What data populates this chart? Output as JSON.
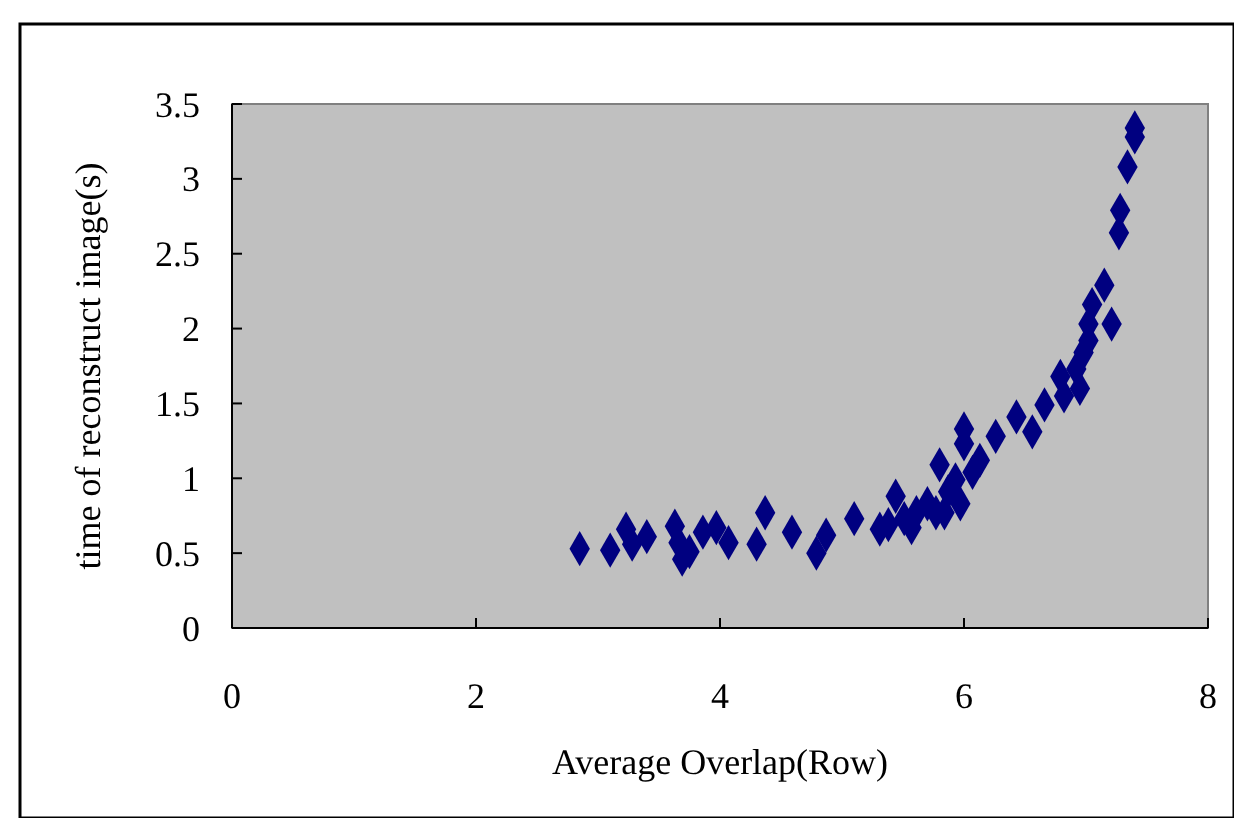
{
  "chart_data": {
    "type": "scatter",
    "xlabel": "Average Overlap(Row)",
    "ylabel": "time of reconstruct image(s)",
    "xlim": [
      0,
      8
    ],
    "xticks": [
      0,
      2,
      4,
      6,
      8
    ],
    "ylim": [
      0,
      3.5
    ],
    "yticks": [
      0,
      0.5,
      1,
      1.5,
      2,
      2.5,
      3,
      3.5
    ],
    "grid": false,
    "marker": "diamond",
    "series": [
      {
        "color": "#000080",
        "x": [
          2.85,
          3.1,
          3.23,
          3.28,
          3.4,
          3.63,
          3.66,
          3.69,
          3.75,
          3.86,
          3.97,
          4.07,
          4.3,
          4.37,
          4.59,
          4.79,
          4.87,
          5.1,
          5.31,
          5.38,
          5.44,
          5.51,
          5.57,
          5.61,
          5.7,
          5.77,
          5.8,
          5.84,
          5.87,
          5.93,
          5.97,
          6.0,
          6.0,
          6.07,
          6.13,
          6.26,
          6.43,
          6.56,
          6.66,
          6.79,
          6.82,
          6.92,
          6.95,
          6.98,
          7.02,
          7.02,
          7.05,
          7.15,
          7.21,
          7.27,
          7.28,
          7.34,
          7.4,
          7.4
        ],
        "values": [
          0.53,
          0.52,
          0.66,
          0.56,
          0.61,
          0.68,
          0.57,
          0.46,
          0.51,
          0.64,
          0.67,
          0.57,
          0.56,
          0.77,
          0.64,
          0.5,
          0.62,
          0.73,
          0.66,
          0.69,
          0.88,
          0.73,
          0.67,
          0.77,
          0.83,
          0.77,
          1.09,
          0.77,
          0.91,
          0.99,
          0.83,
          1.33,
          1.23,
          1.04,
          1.12,
          1.28,
          1.41,
          1.31,
          1.49,
          1.68,
          1.55,
          1.73,
          1.6,
          1.84,
          1.92,
          2.03,
          2.16,
          2.29,
          2.03,
          2.64,
          2.79,
          3.08,
          3.34,
          3.28
        ]
      }
    ]
  }
}
